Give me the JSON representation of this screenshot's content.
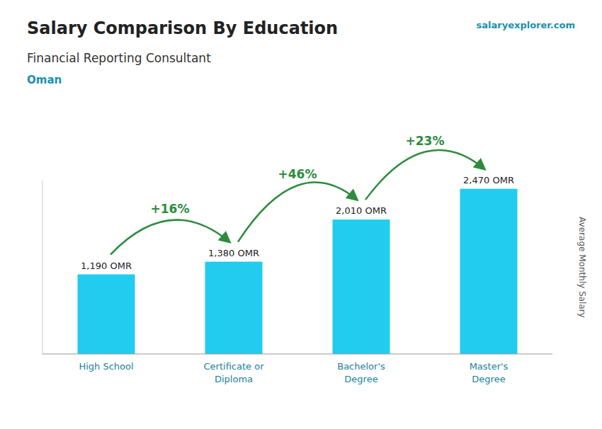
{
  "chart_data": {
    "type": "bar",
    "title": "Salary Comparison By Education",
    "subtitle": "Financial Reporting Consultant",
    "country": "Oman",
    "source": "salaryexplorer.com",
    "ylabel": "Average Monthly Salary",
    "categories": [
      "High School",
      "Certificate or\nDiploma",
      "Bachelor's\nDegree",
      "Master's\nDegree"
    ],
    "values": [
      1190,
      1380,
      2010,
      2470
    ],
    "value_labels": [
      "1,190 OMR",
      "1,380 OMR",
      "2,010 OMR",
      "2,470 OMR"
    ],
    "annotations": [
      "+16%",
      "+46%",
      "+23%"
    ],
    "color": "#22ccee",
    "ylim": [
      0,
      2593.5
    ],
    "data_labels": true,
    "tick_labels": "x",
    "grid": false
  }
}
